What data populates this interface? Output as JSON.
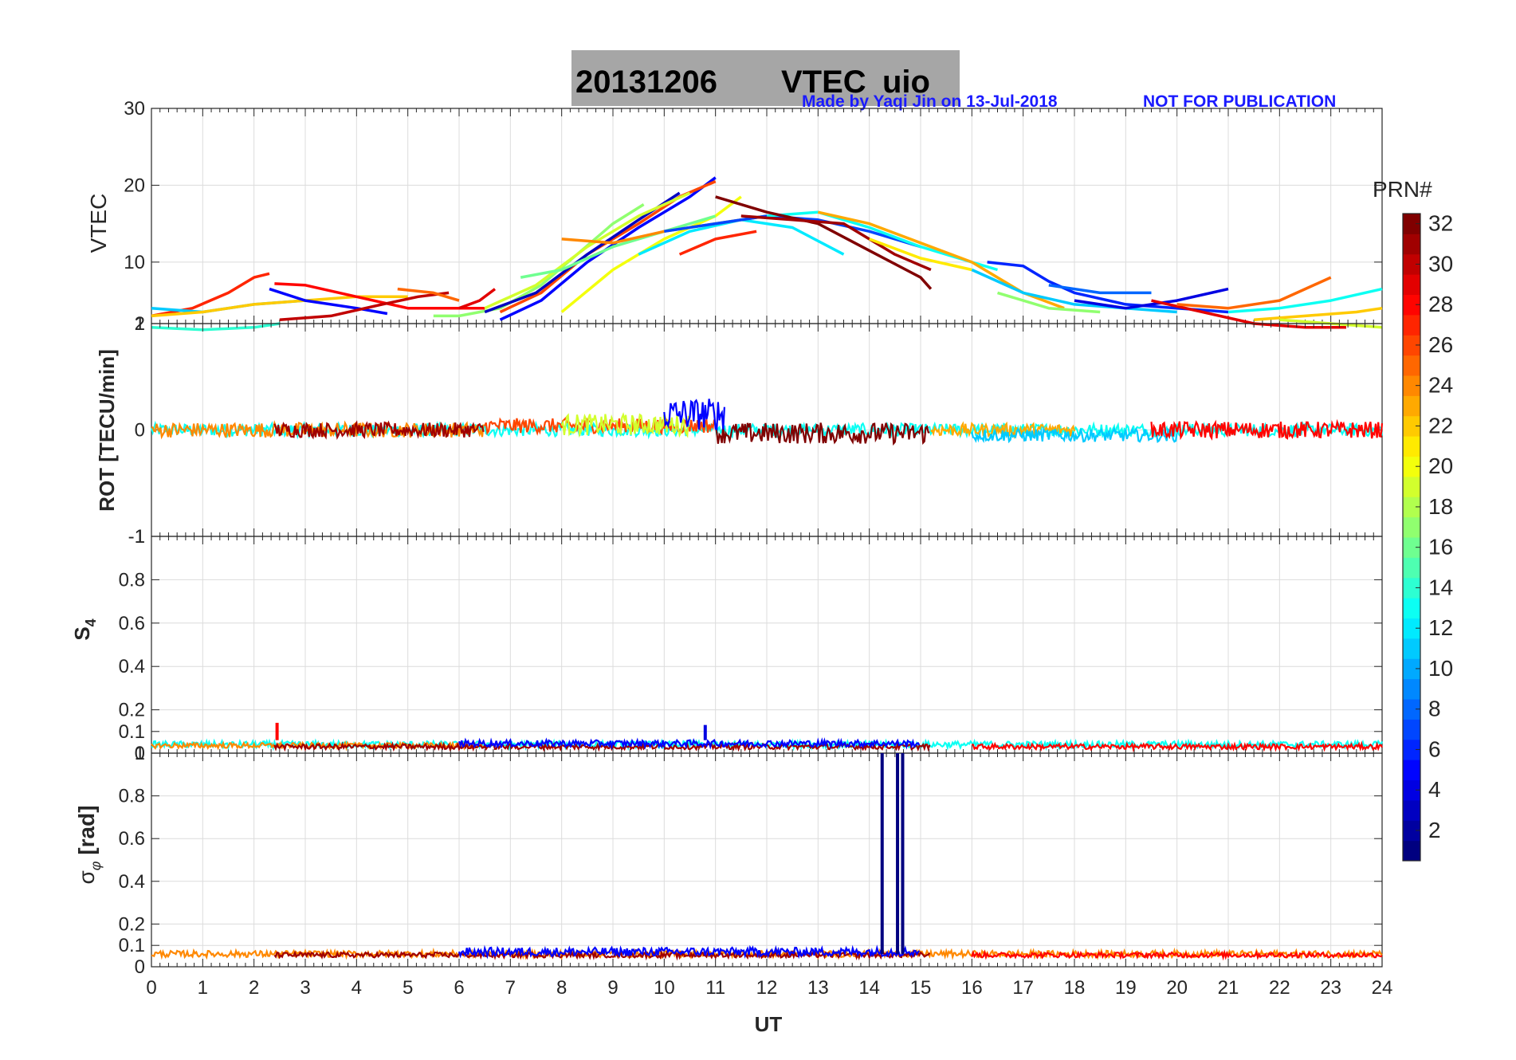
{
  "figure": {
    "title_date": "20131206",
    "title_main": "VTEC",
    "title_station": "uio",
    "credit_left": "Made by Yaqi Jin on 13-Jul-2018",
    "credit_right": "NOT FOR PUBLICATION",
    "title_bg": "#a6a6a6"
  },
  "chart_data": [
    {
      "id": "vtec",
      "type": "line",
      "ylabel": "VTEC",
      "ylim": [
        2,
        30
      ],
      "yticks": [
        2,
        10,
        20,
        30
      ],
      "xlim": [
        0,
        24
      ],
      "series": [
        {
          "prn": 27,
          "x": [
            0,
            0.8,
            1.5,
            2.0,
            2.3
          ],
          "y": [
            3,
            4,
            6,
            8,
            8.5
          ]
        },
        {
          "prn": 11,
          "x": [
            0,
            1,
            2,
            3
          ],
          "y": [
            4,
            3.5,
            4.5,
            5
          ]
        },
        {
          "prn": 14,
          "x": [
            0,
            1,
            2,
            2.5
          ],
          "y": [
            1.5,
            1.2,
            1.5,
            2
          ]
        },
        {
          "prn": 22,
          "x": [
            0,
            1,
            2,
            3,
            4,
            5
          ],
          "y": [
            3,
            3.5,
            4.5,
            5,
            5.5,
            5.5
          ]
        },
        {
          "prn": 5,
          "x": [
            2.3,
            3,
            4,
            4.6
          ],
          "y": [
            6.5,
            5,
            4,
            3.3
          ]
        },
        {
          "prn": 28,
          "x": [
            2.4,
            3,
            4,
            5,
            6.5
          ],
          "y": [
            7.2,
            7,
            5.5,
            4,
            4
          ]
        },
        {
          "prn": 30,
          "x": [
            2.5,
            3.5,
            4.5,
            5.2,
            5.8
          ],
          "y": [
            2.5,
            3,
            4.5,
            5.5,
            6
          ]
        },
        {
          "prn": 25,
          "x": [
            4.8,
            5.5,
            6
          ],
          "y": [
            6.5,
            6,
            5
          ]
        },
        {
          "prn": 29,
          "x": [
            6,
            6.4,
            6.7
          ],
          "y": [
            4,
            5,
            6.5
          ]
        },
        {
          "prn": 17,
          "x": [
            5.5,
            6,
            6.8,
            7.6,
            8.3,
            9,
            9.6
          ],
          "y": [
            3,
            3,
            4,
            7,
            11,
            15,
            17.5
          ]
        },
        {
          "prn": 5,
          "x": [
            6.8,
            7.6,
            8.5,
            9.5,
            10.5,
            11
          ],
          "y": [
            2.5,
            5,
            10,
            14.5,
            18.5,
            21
          ]
        },
        {
          "prn": 26,
          "x": [
            6.8,
            7.6,
            8.5,
            9.5,
            10.3,
            11
          ],
          "y": [
            3.5,
            6,
            11,
            15,
            18.5,
            20.5
          ]
        },
        {
          "prn": 3,
          "x": [
            6.5,
            7.5,
            8.5,
            9.5,
            10.3
          ],
          "y": [
            3.5,
            6,
            11,
            15.5,
            19
          ]
        },
        {
          "prn": 19,
          "x": [
            6.5,
            7.5,
            8.5,
            9.5,
            10.5
          ],
          "y": [
            4,
            7,
            12,
            16,
            19
          ]
        },
        {
          "prn": 20,
          "x": [
            8,
            9,
            10,
            11,
            11.5
          ],
          "y": [
            3.5,
            9,
            13,
            16,
            18.5
          ]
        },
        {
          "prn": 16,
          "x": [
            7.2,
            8,
            9,
            10,
            11
          ],
          "y": [
            8,
            9,
            12,
            14,
            16
          ]
        },
        {
          "prn": 12,
          "x": [
            9.5,
            10.5,
            11.5,
            12.5,
            13.5
          ],
          "y": [
            11,
            14,
            15.5,
            14.5,
            11
          ]
        },
        {
          "prn": 24,
          "x": [
            8,
            9,
            10,
            11,
            12
          ],
          "y": [
            13,
            12.5,
            14,
            15,
            16
          ]
        },
        {
          "prn": 27,
          "x": [
            10.3,
            11,
            11.8
          ],
          "y": [
            11,
            13,
            14
          ]
        },
        {
          "prn": 7,
          "x": [
            10,
            11,
            12,
            13,
            14,
            15
          ],
          "y": [
            14,
            15,
            16,
            15.5,
            14,
            12
          ]
        },
        {
          "prn": 13,
          "x": [
            12,
            13,
            14,
            15,
            16,
            16.5
          ],
          "y": [
            16,
            16.5,
            14.5,
            12,
            10,
            9
          ]
        },
        {
          "prn": 32,
          "x": [
            11,
            12,
            13,
            14,
            15,
            15.2
          ],
          "y": [
            18.5,
            16.5,
            15,
            11.5,
            8,
            6.5
          ]
        },
        {
          "prn": 31,
          "x": [
            11.5,
            12.5,
            13.5,
            14.5,
            15.2
          ],
          "y": [
            16,
            15.5,
            15,
            11,
            9
          ]
        },
        {
          "prn": 23,
          "x": [
            13,
            14,
            15,
            16,
            17,
            17.8
          ],
          "y": [
            16.5,
            15,
            12.5,
            10,
            6,
            4
          ]
        },
        {
          "prn": 21,
          "x": [
            14,
            15,
            16
          ],
          "y": [
            13,
            10.5,
            9
          ]
        },
        {
          "prn": 6,
          "x": [
            16.3,
            17,
            17.5,
            18,
            19,
            20,
            21
          ],
          "y": [
            10,
            9.5,
            7.5,
            6,
            4.5,
            4,
            3.5
          ]
        },
        {
          "prn": 11,
          "x": [
            16,
            17,
            18,
            19,
            20
          ],
          "y": [
            9,
            6,
            4.5,
            4,
            3.5
          ]
        },
        {
          "prn": 17,
          "x": [
            16.5,
            17.5,
            18.5
          ],
          "y": [
            6,
            4,
            3.5
          ]
        },
        {
          "prn": 8,
          "x": [
            17.5,
            18.5,
            19.5
          ],
          "y": [
            7,
            6,
            6
          ]
        },
        {
          "prn": 4,
          "x": [
            18,
            19,
            20,
            21
          ],
          "y": [
            5,
            4,
            5,
            6.5
          ]
        },
        {
          "prn": 29,
          "x": [
            19.5,
            20.5,
            21.5,
            22.5,
            23.3
          ],
          "y": [
            5,
            3.5,
            2,
            1.5,
            1.5
          ]
        },
        {
          "prn": 25,
          "x": [
            20,
            21,
            22,
            22.5,
            23
          ],
          "y": [
            4.5,
            4,
            5,
            6.5,
            8
          ]
        },
        {
          "prn": 13,
          "x": [
            21,
            22,
            23,
            24
          ],
          "y": [
            3.5,
            4,
            5,
            6.5
          ]
        },
        {
          "prn": 22,
          "x": [
            21.5,
            22.5,
            23.5,
            24
          ],
          "y": [
            2.5,
            3,
            3.5,
            4
          ]
        },
        {
          "prn": 19,
          "x": [
            22,
            23,
            24
          ],
          "y": [
            2.5,
            2,
            1.5
          ]
        }
      ]
    },
    {
      "id": "rot",
      "type": "scatter",
      "ylabel": "ROT [TECU/min]",
      "ylim": [
        -1,
        1
      ],
      "yticks": [
        -1,
        0,
        1
      ],
      "xlim": [
        0,
        24
      ],
      "bands": [
        {
          "prn": 13,
          "x0": 0,
          "x1": 24,
          "center": 0,
          "amp": 0.06
        },
        {
          "prn": 24,
          "x0": 0,
          "x1": 6.5,
          "center": 0,
          "amp": 0.07
        },
        {
          "prn": 31,
          "x0": 2.4,
          "x1": 6.5,
          "center": 0,
          "amp": 0.07
        },
        {
          "prn": 26,
          "x0": 6.5,
          "x1": 11,
          "center": 0.04,
          "amp": 0.07
        },
        {
          "prn": 19,
          "x0": 8,
          "x1": 10.5,
          "center": 0.05,
          "amp": 0.1
        },
        {
          "prn": 32,
          "x0": 11,
          "x1": 15.2,
          "center": -0.03,
          "amp": 0.1
        },
        {
          "prn": 5,
          "x0": 10,
          "x1": 11.2,
          "center": 0.15,
          "amp": 0.15
        },
        {
          "prn": 23,
          "x0": 15.2,
          "x1": 18,
          "center": 0,
          "amp": 0.06
        },
        {
          "prn": 11,
          "x0": 16,
          "x1": 20,
          "center": -0.05,
          "amp": 0.06
        },
        {
          "prn": 28,
          "x0": 19.5,
          "x1": 24,
          "center": 0,
          "amp": 0.08
        }
      ]
    },
    {
      "id": "s4",
      "type": "scatter",
      "ylabel": "S4",
      "ylim": [
        0,
        1
      ],
      "yticks": [
        0,
        0.1,
        0.2,
        0.4,
        0.6,
        0.8,
        1
      ],
      "xlim": [
        0,
        24
      ],
      "bands": [
        {
          "prn": 13,
          "x0": 0,
          "x1": 24,
          "center": 0.04,
          "amp": 0.015
        },
        {
          "prn": 24,
          "x0": 0,
          "x1": 6.5,
          "center": 0.035,
          "amp": 0.012
        },
        {
          "prn": 31,
          "x0": 2.4,
          "x1": 15.2,
          "center": 0.03,
          "amp": 0.012
        },
        {
          "prn": 5,
          "x0": 6,
          "x1": 15,
          "center": 0.045,
          "amp": 0.015
        },
        {
          "prn": 28,
          "x0": 16,
          "x1": 24,
          "center": 0.03,
          "amp": 0.012
        }
      ],
      "spikes": [
        {
          "prn": 28,
          "x": 2.45,
          "y": 0.14
        },
        {
          "prn": 4,
          "x": 10.8,
          "y": 0.13
        }
      ]
    },
    {
      "id": "sigphi",
      "type": "scatter",
      "ylabel": "σφ [rad]",
      "ylim": [
        0,
        1
      ],
      "yticks": [
        0,
        0.1,
        0.2,
        0.4,
        0.6,
        0.8,
        1
      ],
      "xlim": [
        0,
        24
      ],
      "xlabel": "UT",
      "xticks": [
        0,
        1,
        2,
        3,
        4,
        5,
        6,
        7,
        8,
        9,
        10,
        11,
        12,
        13,
        14,
        15,
        16,
        17,
        18,
        19,
        20,
        21,
        22,
        23,
        24
      ],
      "bands": [
        {
          "prn": 24,
          "x0": 0,
          "x1": 24,
          "center": 0.06,
          "amp": 0.015
        },
        {
          "prn": 31,
          "x0": 2.4,
          "x1": 15.2,
          "center": 0.055,
          "amp": 0.012
        },
        {
          "prn": 5,
          "x0": 6,
          "x1": 15,
          "center": 0.07,
          "amp": 0.02
        },
        {
          "prn": 28,
          "x0": 16,
          "x1": 24,
          "center": 0.055,
          "amp": 0.012
        }
      ],
      "spikes": [
        {
          "prn": 1,
          "x": 14.25,
          "y": 1.0
        },
        {
          "prn": 1,
          "x": 14.55,
          "y": 1.0
        },
        {
          "prn": 1,
          "x": 14.65,
          "y": 1.0
        }
      ]
    },
    {
      "id": "colorbar",
      "type": "heatmap",
      "label": "PRN#",
      "range": [
        1,
        32
      ],
      "ticks": [
        2,
        4,
        6,
        8,
        10,
        12,
        14,
        16,
        18,
        20,
        22,
        24,
        26,
        28,
        30,
        32
      ]
    }
  ]
}
